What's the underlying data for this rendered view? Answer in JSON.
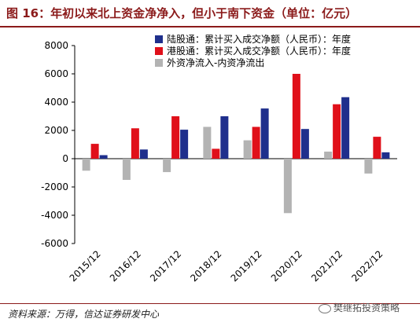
{
  "header": {
    "title": "图 16：年初以来北上资金净净入，但小于南下资金（单位：亿元）"
  },
  "footer": {
    "source": "资料来源：万得，信达证券研发中心",
    "watermark": "樊继拓投资策略"
  },
  "chart_data": {
    "type": "bar",
    "title": "图 16：年初以来北上资金净净入，但小于南下资金（单位：亿元）",
    "categories": [
      "2015/12",
      "2016/12",
      "2017/12",
      "2018/12",
      "2019/12",
      "2020/12",
      "2021/12",
      "2022/12"
    ],
    "series": [
      {
        "name": "陆股通：累计买入成交净额（人民币）：年度",
        "color": "#1f2f8c",
        "values": [
          250,
          650,
          2050,
          3000,
          3550,
          2100,
          4350,
          450
        ]
      },
      {
        "name": "港股通：累计买入成交净额（人民币）：年度",
        "color": "#e0101a",
        "values": [
          1050,
          2150,
          3000,
          700,
          2250,
          6000,
          3850,
          1550
        ]
      },
      {
        "name": "外资净流入-内资净流出",
        "color": "#b3b3b3",
        "values": [
          -850,
          -1500,
          -950,
          2250,
          1300,
          -3850,
          500,
          -1050
        ]
      }
    ],
    "ylim": [
      -6000,
      8000
    ],
    "yticks": [
      -6000,
      -4000,
      -2000,
      0,
      2000,
      4000,
      6000,
      8000
    ],
    "xlabel": "",
    "ylabel": "",
    "legend": "top-right",
    "grid": false
  }
}
